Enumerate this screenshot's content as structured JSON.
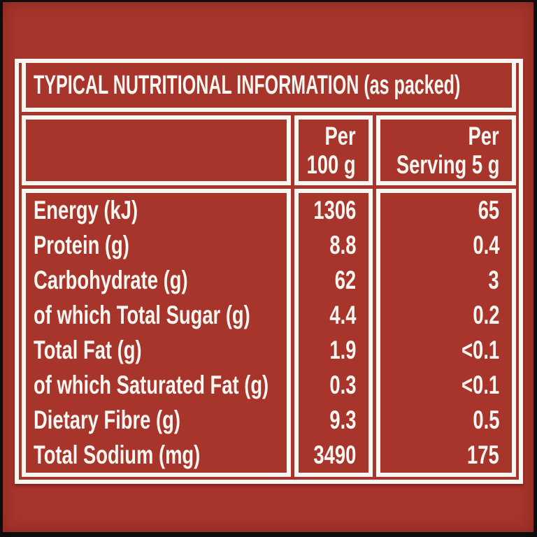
{
  "colors": {
    "background_red": "#A7352B",
    "table_white": "#F9F5F0",
    "text_white": "#F9F5F0",
    "frame_black": "#0D0D0D"
  },
  "table": {
    "title": "TYPICAL NUTRITIONAL INFORMATION (as packed)",
    "header": {
      "per_100g": {
        "line1": "Per",
        "line2": "100 g"
      },
      "per_serving": {
        "line1": "Per",
        "line2": "Serving 5 g"
      }
    },
    "rows": [
      {
        "label": "Energy (kJ)",
        "per_100g": "1306",
        "per_serving": "65"
      },
      {
        "label": "Protein (g)",
        "per_100g": "8.8",
        "per_serving": "0.4"
      },
      {
        "label": "Carbohydrate (g)",
        "per_100g": "62",
        "per_serving": "3"
      },
      {
        "label": "of which Total Sugar (g)",
        "per_100g": "4.4",
        "per_serving": "0.2"
      },
      {
        "label": "Total Fat (g)",
        "per_100g": "1.9",
        "per_serving": "<0.1"
      },
      {
        "label": "of which Saturated Fat (g)",
        "per_100g": "0.3",
        "per_serving": "<0.1"
      },
      {
        "label": "Dietary Fibre (g)",
        "per_100g": "9.3",
        "per_serving": "0.5"
      },
      {
        "label": "Total Sodium (mg)",
        "per_100g": "3490",
        "per_serving": "175"
      }
    ]
  }
}
